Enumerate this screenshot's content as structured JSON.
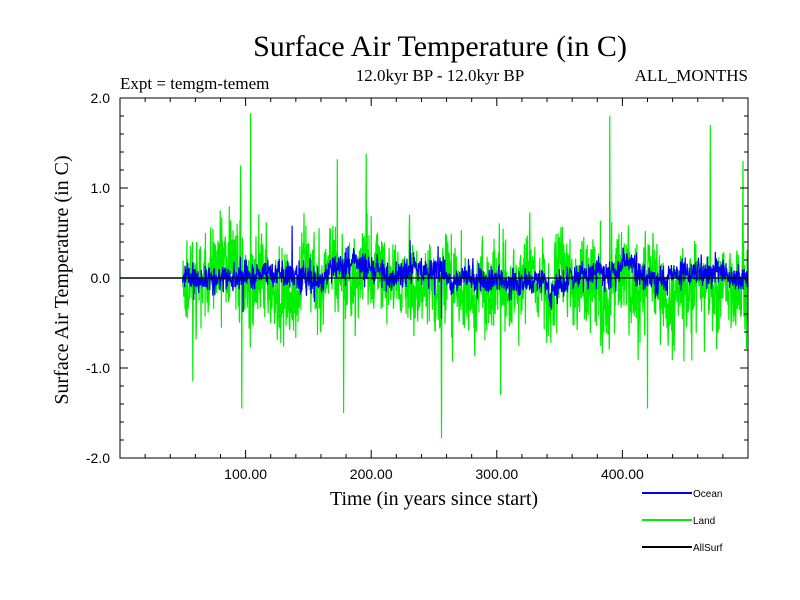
{
  "chart_data": {
    "type": "line",
    "title": "Surface Air Temperature (in C)",
    "subtitle": "12.0kyr BP - 12.0kyr BP",
    "expt_label": "Expt = temgm-temem",
    "months_label": "ALL_MONTHS",
    "xlabel": "Time (in years since start)",
    "ylabel": "Surface Air Temperature (in C)",
    "xlim": [
      0,
      500
    ],
    "ylim": [
      -2.0,
      2.0
    ],
    "x_ticks": [
      100,
      200,
      300,
      400
    ],
    "x_tick_labels": [
      "100.00",
      "200.00",
      "300.00",
      "400.00"
    ],
    "y_ticks": [
      -2.0,
      -1.0,
      0.0,
      1.0,
      2.0
    ],
    "y_tick_labels": [
      "-2.0",
      "-1.0",
      "0.0",
      "1.0",
      "2.0"
    ],
    "signal_start_year": 50,
    "series": [
      {
        "name": "Land",
        "color": "#00ee00",
        "flat_before_start": 0.0,
        "amplitude": 0.45,
        "min": -1.78,
        "max": 1.83,
        "peaks": [
          [
            104,
            1.83
          ],
          [
            96,
            1.25
          ],
          [
            173,
            1.32
          ],
          [
            196,
            1.38
          ],
          [
            390,
            1.8
          ],
          [
            470,
            1.7
          ],
          [
            496,
            1.3
          ],
          [
            256,
            -1.78
          ],
          [
            178,
            -1.5
          ],
          [
            97,
            -1.45
          ],
          [
            420,
            -1.45
          ],
          [
            58,
            -1.15
          ],
          [
            303,
            -1.3
          ]
        ]
      },
      {
        "name": "Ocean",
        "color": "#0000ee",
        "flat_before_start": 0.0,
        "amplitude": 0.14,
        "min": -0.45,
        "max": 0.58,
        "peaks": [
          [
            137,
            0.58
          ],
          [
            231,
            0.42
          ],
          [
            98,
            -0.38
          ],
          [
            256,
            -0.45
          ]
        ]
      },
      {
        "name": "AllSurf",
        "color": "#000000",
        "flat_before_start": 0.0,
        "amplitude": 0.0,
        "min": 0.0,
        "max": 0.0,
        "peaks": []
      }
    ],
    "legend": {
      "placement": "bottom-right",
      "entries": [
        {
          "label": "Ocean",
          "color": "#0000ee"
        },
        {
          "label": "Land",
          "color": "#00ee00"
        },
        {
          "label": "AllSurf",
          "color": "#000000"
        }
      ]
    }
  }
}
